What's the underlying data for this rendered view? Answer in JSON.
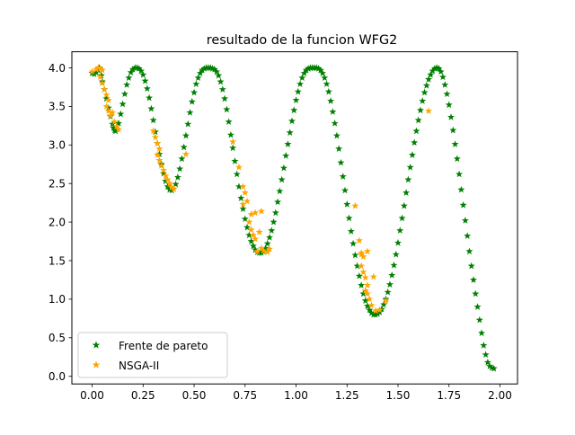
{
  "chart_data": {
    "type": "scatter",
    "title": "resultado de la funcion WFG2",
    "xlabel": "",
    "ylabel": "",
    "xlim": [
      -0.0993,
      2.0859
    ],
    "ylim": [
      -0.0993,
      4.2085
    ],
    "xticks": [
      "0.00",
      "0.25",
      "0.50",
      "0.75",
      "1.00",
      "1.25",
      "1.50",
      "1.75",
      "2.00"
    ],
    "xtick_values": [
      0,
      0.25,
      0.5,
      0.75,
      1.0,
      1.25,
      1.5,
      1.75,
      2.0
    ],
    "yticks": [
      "0.0",
      "0.5",
      "1.0",
      "1.5",
      "2.0",
      "2.5",
      "3.0",
      "3.5",
      "4.0"
    ],
    "ytick_values": [
      0,
      0.5,
      1.0,
      1.5,
      2.0,
      2.5,
      3.0,
      3.5,
      4.0
    ],
    "grid": false,
    "legend_position": "lower-left",
    "marker": "star",
    "series": [
      {
        "name": "Frente de pareto",
        "color": "#008000",
        "points": [
          [
            0.0,
            3.93
          ],
          [
            0.01,
            3.92
          ],
          [
            0.02,
            3.94
          ],
          [
            0.03,
            3.97
          ],
          [
            0.035,
            4.0
          ],
          [
            0.045,
            3.9
          ],
          [
            0.05,
            3.82
          ],
          [
            0.06,
            3.72
          ],
          [
            0.07,
            3.6
          ],
          [
            0.08,
            3.48
          ],
          [
            0.09,
            3.37
          ],
          [
            0.1,
            3.27
          ],
          [
            0.105,
            3.22
          ],
          [
            0.11,
            3.19
          ],
          [
            0.115,
            3.18
          ],
          [
            0.12,
            3.2
          ],
          [
            0.13,
            3.28
          ],
          [
            0.14,
            3.4
          ],
          [
            0.15,
            3.53
          ],
          [
            0.16,
            3.66
          ],
          [
            0.17,
            3.78
          ],
          [
            0.18,
            3.87
          ],
          [
            0.19,
            3.94
          ],
          [
            0.2,
            3.98
          ],
          [
            0.21,
            4.0
          ],
          [
            0.22,
            4.0
          ],
          [
            0.23,
            3.99
          ],
          [
            0.24,
            3.96
          ],
          [
            0.25,
            3.91
          ],
          [
            0.26,
            3.83
          ],
          [
            0.27,
            3.73
          ],
          [
            0.28,
            3.61
          ],
          [
            0.29,
            3.47
          ],
          [
            0.3,
            3.32
          ],
          [
            0.31,
            3.17
          ],
          [
            0.32,
            3.02
          ],
          [
            0.33,
            2.88
          ],
          [
            0.34,
            2.75
          ],
          [
            0.35,
            2.63
          ],
          [
            0.36,
            2.53
          ],
          [
            0.37,
            2.46
          ],
          [
            0.38,
            2.42
          ],
          [
            0.39,
            2.41
          ],
          [
            0.4,
            2.43
          ],
          [
            0.41,
            2.49
          ],
          [
            0.42,
            2.58
          ],
          [
            0.43,
            2.69
          ],
          [
            0.44,
            2.82
          ],
          [
            0.45,
            2.97
          ],
          [
            0.46,
            3.12
          ],
          [
            0.47,
            3.27
          ],
          [
            0.48,
            3.42
          ],
          [
            0.49,
            3.56
          ],
          [
            0.5,
            3.68
          ],
          [
            0.51,
            3.79
          ],
          [
            0.52,
            3.87
          ],
          [
            0.53,
            3.93
          ],
          [
            0.54,
            3.97
          ],
          [
            0.55,
            3.99
          ],
          [
            0.56,
            4.0
          ],
          [
            0.57,
            4.0
          ],
          [
            0.58,
            4.0
          ],
          [
            0.59,
            3.99
          ],
          [
            0.6,
            3.98
          ],
          [
            0.61,
            3.95
          ],
          [
            0.62,
            3.9
          ],
          [
            0.63,
            3.82
          ],
          [
            0.64,
            3.72
          ],
          [
            0.65,
            3.6
          ],
          [
            0.66,
            3.46
          ],
          [
            0.67,
            3.3
          ],
          [
            0.68,
            3.13
          ],
          [
            0.69,
            2.96
          ],
          [
            0.7,
            2.79
          ],
          [
            0.71,
            2.62
          ],
          [
            0.72,
            2.46
          ],
          [
            0.73,
            2.31
          ],
          [
            0.74,
            2.17
          ],
          [
            0.75,
            2.04
          ],
          [
            0.76,
            1.93
          ],
          [
            0.77,
            1.83
          ],
          [
            0.78,
            1.75
          ],
          [
            0.79,
            1.69
          ],
          [
            0.8,
            1.64
          ],
          [
            0.81,
            1.61
          ],
          [
            0.82,
            1.6
          ],
          [
            0.83,
            1.6
          ],
          [
            0.84,
            1.62
          ],
          [
            0.85,
            1.66
          ],
          [
            0.86,
            1.72
          ],
          [
            0.87,
            1.8
          ],
          [
            0.88,
            1.89
          ],
          [
            0.89,
            2.0
          ],
          [
            0.9,
            2.12
          ],
          [
            0.91,
            2.26
          ],
          [
            0.92,
            2.4
          ],
          [
            0.93,
            2.55
          ],
          [
            0.94,
            2.7
          ],
          [
            0.95,
            2.86
          ],
          [
            0.96,
            3.01
          ],
          [
            0.97,
            3.16
          ],
          [
            0.98,
            3.31
          ],
          [
            0.99,
            3.45
          ],
          [
            1.0,
            3.58
          ],
          [
            1.01,
            3.69
          ],
          [
            1.02,
            3.79
          ],
          [
            1.03,
            3.87
          ],
          [
            1.04,
            3.93
          ],
          [
            1.05,
            3.97
          ],
          [
            1.06,
            3.99
          ],
          [
            1.07,
            4.0
          ],
          [
            1.08,
            4.0
          ],
          [
            1.09,
            4.0
          ],
          [
            1.1,
            4.0
          ],
          [
            1.11,
            3.99
          ],
          [
            1.12,
            3.97
          ],
          [
            1.13,
            3.93
          ],
          [
            1.14,
            3.87
          ],
          [
            1.15,
            3.79
          ],
          [
            1.16,
            3.69
          ],
          [
            1.17,
            3.57
          ],
          [
            1.18,
            3.43
          ],
          [
            1.19,
            3.28
          ],
          [
            1.2,
            3.12
          ],
          [
            1.21,
            2.95
          ],
          [
            1.22,
            2.77
          ],
          [
            1.23,
            2.59
          ],
          [
            1.24,
            2.41
          ],
          [
            1.25,
            2.23
          ],
          [
            1.26,
            2.05
          ],
          [
            1.27,
            1.88
          ],
          [
            1.28,
            1.72
          ],
          [
            1.29,
            1.57
          ],
          [
            1.3,
            1.43
          ],
          [
            1.31,
            1.3
          ],
          [
            1.32,
            1.18
          ],
          [
            1.33,
            1.07
          ],
          [
            1.34,
            0.98
          ],
          [
            1.35,
            0.91
          ],
          [
            1.36,
            0.86
          ],
          [
            1.37,
            0.82
          ],
          [
            1.38,
            0.8
          ],
          [
            1.39,
            0.8
          ],
          [
            1.4,
            0.81
          ],
          [
            1.41,
            0.83
          ],
          [
            1.42,
            0.87
          ],
          [
            1.43,
            0.93
          ],
          [
            1.44,
            1.0
          ],
          [
            1.45,
            1.09
          ],
          [
            1.46,
            1.19
          ],
          [
            1.47,
            1.31
          ],
          [
            1.48,
            1.44
          ],
          [
            1.49,
            1.58
          ],
          [
            1.5,
            1.73
          ],
          [
            1.51,
            1.89
          ],
          [
            1.52,
            2.05
          ],
          [
            1.53,
            2.21
          ],
          [
            1.54,
            2.38
          ],
          [
            1.55,
            2.55
          ],
          [
            1.56,
            2.71
          ],
          [
            1.57,
            2.87
          ],
          [
            1.58,
            3.03
          ],
          [
            1.59,
            3.18
          ],
          [
            1.6,
            3.32
          ],
          [
            1.61,
            3.45
          ],
          [
            1.62,
            3.57
          ],
          [
            1.63,
            3.68
          ],
          [
            1.64,
            3.77
          ],
          [
            1.65,
            3.85
          ],
          [
            1.66,
            3.91
          ],
          [
            1.67,
            3.96
          ],
          [
            1.68,
            3.99
          ],
          [
            1.69,
            4.0
          ],
          [
            1.7,
            3.99
          ],
          [
            1.71,
            3.95
          ],
          [
            1.72,
            3.88
          ],
          [
            1.73,
            3.78
          ],
          [
            1.74,
            3.66
          ],
          [
            1.75,
            3.52
          ],
          [
            1.76,
            3.36
          ],
          [
            1.77,
            3.19
          ],
          [
            1.78,
            3.01
          ],
          [
            1.79,
            2.82
          ],
          [
            1.8,
            2.62
          ],
          [
            1.81,
            2.42
          ],
          [
            1.82,
            2.22
          ],
          [
            1.83,
            2.02
          ],
          [
            1.84,
            1.82
          ],
          [
            1.85,
            1.62
          ],
          [
            1.86,
            1.43
          ],
          [
            1.87,
            1.25
          ],
          [
            1.88,
            1.07
          ],
          [
            1.89,
            0.9
          ],
          [
            1.9,
            0.73
          ],
          [
            1.91,
            0.56
          ],
          [
            1.92,
            0.4
          ],
          [
            1.93,
            0.28
          ],
          [
            1.94,
            0.18
          ],
          [
            1.95,
            0.13
          ],
          [
            1.96,
            0.11
          ],
          [
            1.97,
            0.1
          ]
        ]
      },
      {
        "name": "NSGA-II",
        "color": "#ffa500",
        "points": [
          [
            0.0,
            3.95
          ],
          [
            0.02,
            3.98
          ],
          [
            0.03,
            4.0
          ],
          [
            0.04,
            3.99
          ],
          [
            0.05,
            3.97
          ],
          [
            0.04,
            3.88
          ],
          [
            0.05,
            3.8
          ],
          [
            0.06,
            3.72
          ],
          [
            0.07,
            3.65
          ],
          [
            0.08,
            3.58
          ],
          [
            0.07,
            3.5
          ],
          [
            0.08,
            3.44
          ],
          [
            0.09,
            3.38
          ],
          [
            0.1,
            3.42
          ],
          [
            0.11,
            3.3
          ],
          [
            0.12,
            3.24
          ],
          [
            0.13,
            3.2
          ],
          [
            0.3,
            3.18
          ],
          [
            0.31,
            3.1
          ],
          [
            0.32,
            3.02
          ],
          [
            0.33,
            2.95
          ],
          [
            0.32,
            2.87
          ],
          [
            0.33,
            2.8
          ],
          [
            0.34,
            2.73
          ],
          [
            0.35,
            2.67
          ],
          [
            0.36,
            2.6
          ],
          [
            0.37,
            2.55
          ],
          [
            0.38,
            2.5
          ],
          [
            0.39,
            2.45
          ],
          [
            0.4,
            2.43
          ],
          [
            0.46,
            2.88
          ],
          [
            0.69,
            3.04
          ],
          [
            0.72,
            2.71
          ],
          [
            0.74,
            2.46
          ],
          [
            0.75,
            2.38
          ],
          [
            0.76,
            2.27
          ],
          [
            0.74,
            2.23
          ],
          [
            0.78,
            2.1
          ],
          [
            0.77,
            2.0
          ],
          [
            0.78,
            1.9
          ],
          [
            0.79,
            1.83
          ],
          [
            0.8,
            1.78
          ],
          [
            0.8,
            2.12
          ],
          [
            0.83,
            2.14
          ],
          [
            0.82,
            1.87
          ],
          [
            0.83,
            1.66
          ],
          [
            0.84,
            1.63
          ],
          [
            0.86,
            1.61
          ],
          [
            0.87,
            1.65
          ],
          [
            0.81,
            1.62
          ],
          [
            1.29,
            2.21
          ],
          [
            1.31,
            1.76
          ],
          [
            1.32,
            1.58
          ],
          [
            1.33,
            1.55
          ],
          [
            1.32,
            1.43
          ],
          [
            1.33,
            1.35
          ],
          [
            1.34,
            1.28
          ],
          [
            1.35,
            1.18
          ],
          [
            1.34,
            1.11
          ],
          [
            1.35,
            1.07
          ],
          [
            1.38,
            1.29
          ],
          [
            1.37,
            0.92
          ],
          [
            1.39,
            0.85
          ],
          [
            1.41,
            0.86
          ],
          [
            1.44,
            0.98
          ],
          [
            1.32,
            1.6
          ],
          [
            1.35,
            1.62
          ],
          [
            1.36,
            1.0
          ],
          [
            1.65,
            3.44
          ]
        ]
      }
    ]
  }
}
